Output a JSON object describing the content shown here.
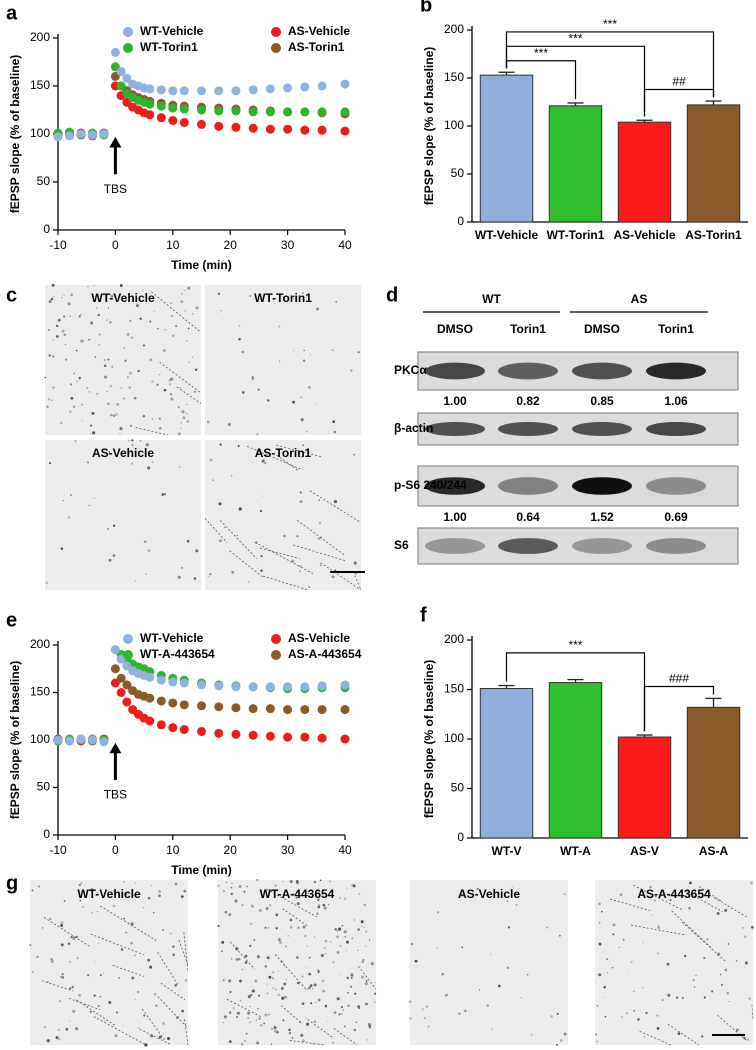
{
  "chart_data": [
    {
      "type": "scatter",
      "panel": "a",
      "xlabel": "Time (min)",
      "ylabel": "fEPSP slope (% of baseline)",
      "annotation": "TBS",
      "x": [
        -10,
        -8,
        -6,
        -4,
        -2,
        0,
        1,
        2,
        3,
        4,
        5,
        6,
        8,
        10,
        12,
        15,
        18,
        21,
        24,
        27,
        30,
        33,
        36,
        40
      ],
      "series": [
        {
          "name": "WT-Vehicle",
          "color": "#8fb3e0",
          "values": [
            97,
            98,
            100,
            99,
            100,
            185,
            165,
            158,
            152,
            150,
            148,
            147,
            146,
            145,
            145,
            145,
            145,
            145,
            146,
            147,
            148,
            149,
            150,
            152
          ]
        },
        {
          "name": "AS-Vehicle",
          "color": "#ee1c1c",
          "values": [
            100,
            99,
            101,
            100,
            100,
            150,
            140,
            133,
            128,
            125,
            122,
            120,
            117,
            114,
            112,
            110,
            108,
            107,
            106,
            105,
            105,
            104,
            104,
            103
          ]
        },
        {
          "name": "WT-Torin1",
          "color": "#2db52d",
          "values": [
            101,
            102,
            100,
            101,
            99,
            170,
            150,
            142,
            138,
            135,
            133,
            131,
            129,
            127,
            126,
            125,
            124,
            124,
            123,
            123,
            123,
            123,
            123,
            123
          ]
        },
        {
          "name": "AS-Torin1",
          "color": "#8c5a2a",
          "values": [
            99,
            100,
            99,
            98,
            101,
            160,
            150,
            145,
            141,
            138,
            136,
            134,
            132,
            130,
            129,
            128,
            127,
            126,
            125,
            124,
            123,
            123,
            122,
            121
          ]
        }
      ],
      "xlim": [
        -10,
        40
      ],
      "xticks": [
        -10,
        0,
        10,
        20,
        30,
        40
      ],
      "ylim": [
        0,
        200
      ],
      "yticks": [
        0,
        50,
        100,
        150,
        200
      ]
    },
    {
      "type": "bar",
      "panel": "b",
      "ylabel": "fEPSP slope (% of baseline)",
      "categories": [
        "WT-Vehicle",
        "WT-Torin1",
        "AS-Vehicle",
        "AS-Torin1"
      ],
      "values": [
        153,
        121,
        104,
        122
      ],
      "errors": [
        3,
        3,
        2,
        4
      ],
      "colors": [
        "#8eaedb",
        "#2fbf2f",
        "#ff1a1a",
        "#8b5a2b"
      ],
      "ylim": [
        0,
        200
      ],
      "yticks": [
        0,
        50,
        100,
        150,
        200
      ],
      "brackets": [
        {
          "label": "***",
          "between": [
            0,
            1
          ]
        },
        {
          "label": "***",
          "between": [
            0,
            2
          ]
        },
        {
          "label": "***",
          "between": [
            0,
            3
          ]
        },
        {
          "label": "##",
          "between": [
            2,
            3
          ]
        }
      ]
    },
    {
      "type": "scatter",
      "panel": "e",
      "xlabel": "Time (min)",
      "ylabel": "fEPSP slope (% of baseline)",
      "annotation": "TBS",
      "x": [
        -10,
        -8,
        -6,
        -4,
        -2,
        0,
        1,
        2,
        3,
        4,
        5,
        6,
        8,
        10,
        12,
        15,
        18,
        21,
        24,
        27,
        30,
        33,
        36,
        40
      ],
      "series": [
        {
          "name": "WT-Vehicle",
          "color": "#8fb3e0",
          "values": [
            100,
            99,
            101,
            100,
            98,
            195,
            185,
            178,
            173,
            170,
            168,
            166,
            163,
            161,
            160,
            158,
            157,
            156,
            156,
            156,
            156,
            156,
            157,
            158
          ]
        },
        {
          "name": "AS-Vehicle",
          "color": "#ee1c1c",
          "values": [
            101,
            100,
            99,
            100,
            101,
            160,
            150,
            140,
            132,
            127,
            123,
            120,
            116,
            113,
            111,
            109,
            107,
            106,
            105,
            104,
            103,
            103,
            102,
            101
          ]
        },
        {
          "name": "WT-A-443654",
          "color": "#2db52d",
          "values": [
            99,
            101,
            100,
            101,
            100,
            195,
            190,
            185,
            180,
            177,
            175,
            172,
            168,
            165,
            163,
            160,
            158,
            157,
            156,
            155,
            154,
            154,
            155,
            155
          ]
        },
        {
          "name": "AS-A-443654",
          "color": "#8c5a2a",
          "values": [
            100,
            100,
            101,
            99,
            100,
            175,
            165,
            158,
            152,
            148,
            146,
            144,
            141,
            139,
            137,
            136,
            135,
            134,
            133,
            133,
            132,
            132,
            132,
            132
          ]
        }
      ],
      "xlim": [
        -10,
        40
      ],
      "xticks": [
        -10,
        0,
        10,
        20,
        30,
        40
      ],
      "ylim": [
        0,
        200
      ],
      "yticks": [
        0,
        50,
        100,
        150,
        200
      ]
    },
    {
      "type": "bar",
      "panel": "f",
      "ylabel": "fEPSP slope (% of baseline)",
      "categories": [
        "WT-V",
        "WT-A",
        "AS-V",
        "AS-A"
      ],
      "values": [
        151,
        157,
        102,
        132
      ],
      "errors": [
        3,
        3,
        2,
        9
      ],
      "colors": [
        "#8eaedb",
        "#2fbf2f",
        "#ff1a1a",
        "#8b5a2b"
      ],
      "ylim": [
        0,
        200
      ],
      "yticks": [
        0,
        50,
        100,
        150,
        200
      ],
      "brackets": [
        {
          "label": "***",
          "between": [
            0,
            2
          ]
        },
        {
          "label": "###",
          "between": [
            2,
            3
          ]
        }
      ]
    }
  ],
  "panel_c": {
    "panel": "c",
    "labels": [
      "WT-Vehicle",
      "WT-Torin1",
      "AS-Vehicle",
      "AS-Torin1"
    ]
  },
  "panel_d": {
    "panel": "d",
    "groups": [
      "WT",
      "AS"
    ],
    "lanes": [
      "DMSO",
      "Torin1",
      "DMSO",
      "Torin1"
    ],
    "blots": [
      {
        "label": "PKCα",
        "quant": [
          "1.00",
          "0.82",
          "0.85",
          "1.06"
        ]
      },
      {
        "label": "β-actin"
      },
      {
        "label": "p-S6 240/244",
        "quant": [
          "1.00",
          "0.64",
          "1.52",
          "0.69"
        ]
      },
      {
        "label": "S6"
      }
    ]
  },
  "panel_g": {
    "panel": "g",
    "labels": [
      "WT-Vehicle",
      "WT-A-443654",
      "AS-Vehicle",
      "AS-A-443654"
    ]
  }
}
